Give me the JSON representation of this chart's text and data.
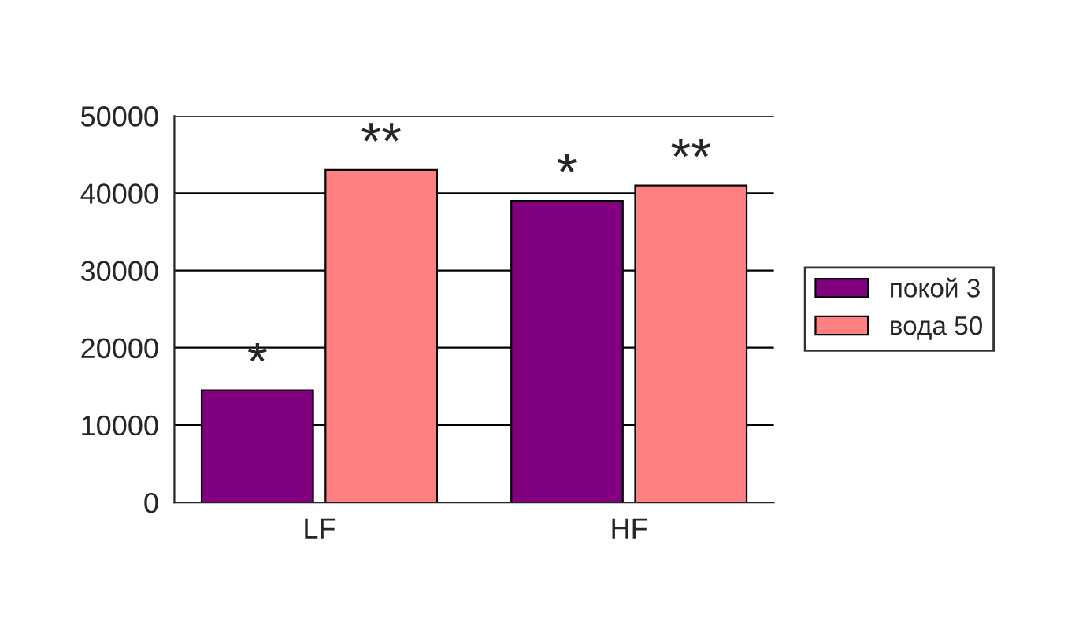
{
  "chart_data": {
    "type": "bar",
    "categories": [
      "LF",
      "HF"
    ],
    "series": [
      {
        "name": "покой 3",
        "color": "#800080",
        "values": [
          14500,
          39000
        ]
      },
      {
        "name": "вода 50",
        "color": "#ff8080",
        "values": [
          43000,
          41000
        ]
      }
    ],
    "ylim": [
      0,
      50000
    ],
    "yticks": [
      0,
      10000,
      20000,
      30000,
      40000,
      50000
    ],
    "grid": "y",
    "legend": "right",
    "annotations": [
      {
        "text": "*",
        "x": "LF",
        "y": 14500
      },
      {
        "text": "**",
        "x": "LF",
        "y": 43000
      },
      {
        "text": "*",
        "x": "HF",
        "y": 39000
      },
      {
        "text": "**",
        "x": "HF",
        "y": 41000
      }
    ]
  }
}
